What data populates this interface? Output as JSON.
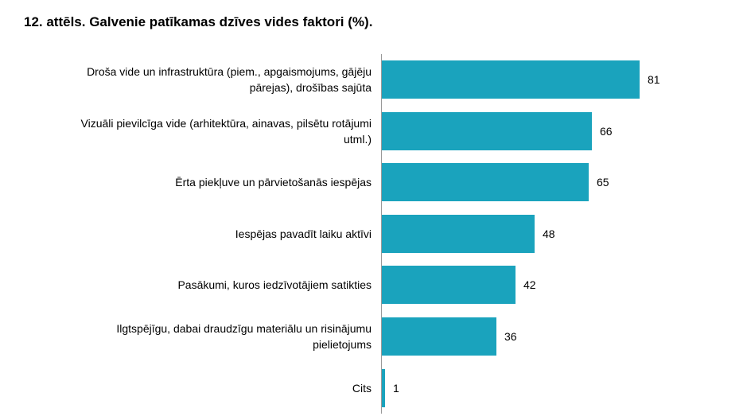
{
  "chart_data": {
    "type": "bar",
    "orientation": "horizontal",
    "title": "12. attēls. Galvenie patīkamas dzīves vides faktori (%).",
    "categories": [
      "Droša vide un infrastruktūra (piem., apgaismojums, gājēju pārejas), drošības sajūta",
      "Vizuāli pievilcīga vide (arhitektūra, ainavas, pilsētu rotājumi utml.)",
      "Ērta piekļuve un pārvietošanās iespējas",
      "Iespējas pavadīt laiku aktīvi",
      "Pasākumi, kuros iedzīvotājiem satikties",
      "Ilgtspējīgu, dabai draudzīgu materiālu un risinājumu pielietojums",
      "Cits"
    ],
    "values": [
      81,
      66,
      65,
      48,
      42,
      36,
      1
    ],
    "color": "#1aa3bd"
  }
}
